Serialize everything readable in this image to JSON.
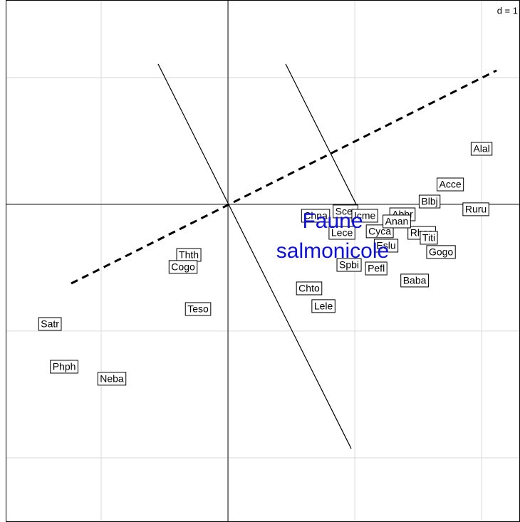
{
  "chart_data": {
    "type": "scatter",
    "grid_label": "d = 1",
    "xlim": [
      -1.753,
      2.303
    ],
    "ylim": [
      -2.506,
      1.612
    ],
    "xticks": [
      -1,
      0,
      1,
      2
    ],
    "yticks": [
      -2,
      -1,
      0,
      1
    ],
    "grid": true,
    "labels": [
      "Alal",
      "Acce",
      "Blbj",
      "Ruru",
      "Chna",
      "Scer",
      "Icme",
      "Abbr",
      "Lece",
      "Cyca",
      "Rhse",
      "Anan",
      "Eslu",
      "Titi",
      "Gogo",
      "Spbi",
      "Pefl",
      "Baba",
      "Chto",
      "Lele",
      "Thth",
      "Cogo",
      "Teso",
      "Satr",
      "Phph",
      "Neba"
    ],
    "x": [
      2.0,
      1.753,
      1.59,
      1.955,
      0.691,
      0.927,
      1.079,
      1.376,
      0.899,
      1.197,
      1.528,
      1.331,
      1.247,
      1.584,
      1.68,
      0.955,
      1.169,
      1.472,
      0.64,
      0.753,
      -0.309,
      -0.354,
      -0.236,
      -1.404,
      -1.292,
      -0.916
    ],
    "y": [
      0.438,
      0.157,
      0.022,
      -0.039,
      -0.09,
      -0.056,
      -0.09,
      -0.079,
      -0.225,
      -0.213,
      -0.225,
      -0.135,
      -0.326,
      -0.264,
      -0.376,
      -0.478,
      -0.506,
      -0.601,
      -0.663,
      -0.803,
      -0.399,
      -0.494,
      -0.826,
      -0.944,
      -1.281,
      -1.376
    ],
    "segments": [
      {
        "x": [
          -0.551,
          0.972
        ],
        "y": [
          1.107,
          -1.927
        ],
        "style": "solid"
      },
      {
        "x": [
          0.455,
          1.011
        ],
        "y": [
          1.107,
          0
        ],
        "style": "solid"
      },
      {
        "x": [
          -1.236,
          2.118
        ],
        "y": [
          -0.624,
          1.056
        ],
        "style": "dashed"
      }
    ],
    "annotation": [
      "Faune",
      "salmonicole"
    ],
    "annotation_color": "#1010e0"
  }
}
